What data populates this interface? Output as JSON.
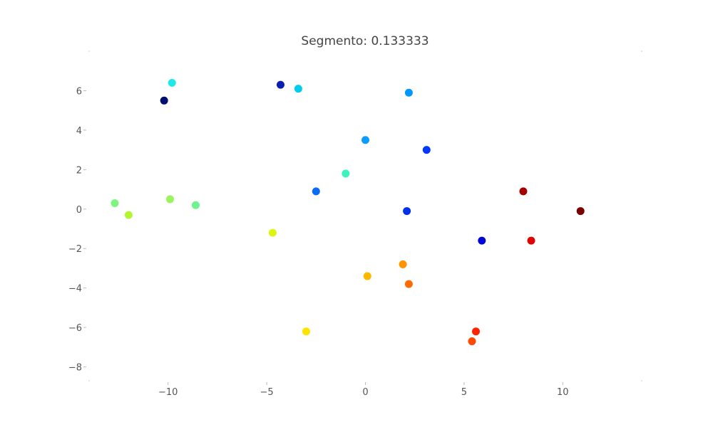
{
  "chart_data": {
    "type": "scatter",
    "title": "Segmento: 0.133333",
    "xlabel": "",
    "ylabel": "",
    "xlim": [
      -14,
      14
    ],
    "ylim": [
      -8.7,
      8.0
    ],
    "grid": false,
    "x_ticks": [
      {
        "value": -10,
        "label": "−10"
      },
      {
        "value": -5,
        "label": "−5"
      },
      {
        "value": 0,
        "label": "0"
      },
      {
        "value": 5,
        "label": "5"
      },
      {
        "value": 10,
        "label": "10"
      }
    ],
    "y_ticks": [
      {
        "value": 6,
        "label": "6"
      },
      {
        "value": 4,
        "label": "4"
      },
      {
        "value": 2,
        "label": "2"
      },
      {
        "value": 0,
        "label": "0"
      },
      {
        "value": -2,
        "label": "−2"
      },
      {
        "value": -4,
        "label": "−4"
      },
      {
        "value": -6,
        "label": "−6"
      },
      {
        "value": -8,
        "label": "−8"
      }
    ],
    "points": [
      {
        "x": -9.8,
        "y": 6.4,
        "color": "#1de9e6"
      },
      {
        "x": -10.2,
        "y": 5.5,
        "color": "#000f6e"
      },
      {
        "x": -4.3,
        "y": 6.3,
        "color": "#0a1eb0"
      },
      {
        "x": -3.4,
        "y": 6.1,
        "color": "#00ccf0"
      },
      {
        "x": 2.2,
        "y": 5.9,
        "color": "#0098ff"
      },
      {
        "x": 0.0,
        "y": 3.5,
        "color": "#0a9cff"
      },
      {
        "x": 3.1,
        "y": 3.0,
        "color": "#0038ff"
      },
      {
        "x": -1.0,
        "y": 1.8,
        "color": "#3ef2c0"
      },
      {
        "x": -2.5,
        "y": 0.9,
        "color": "#0a6cf5"
      },
      {
        "x": -12.7,
        "y": 0.3,
        "color": "#7ef57e"
      },
      {
        "x": -12.0,
        "y": -0.3,
        "color": "#b4f532"
      },
      {
        "x": -9.9,
        "y": 0.5,
        "color": "#98f55e"
      },
      {
        "x": -8.6,
        "y": 0.2,
        "color": "#6ef28e"
      },
      {
        "x": -4.7,
        "y": -1.2,
        "color": "#dcf512"
      },
      {
        "x": 2.1,
        "y": -0.1,
        "color": "#0030e8"
      },
      {
        "x": 5.9,
        "y": -1.6,
        "color": "#0006d8"
      },
      {
        "x": 8.0,
        "y": 0.9,
        "color": "#a50000"
      },
      {
        "x": 10.9,
        "y": -0.1,
        "color": "#7a0000"
      },
      {
        "x": 8.4,
        "y": -1.6,
        "color": "#e00000"
      },
      {
        "x": 0.1,
        "y": -3.4,
        "color": "#ffb800"
      },
      {
        "x": 1.9,
        "y": -2.8,
        "color": "#ff9400"
      },
      {
        "x": 2.2,
        "y": -3.8,
        "color": "#ff6a00"
      },
      {
        "x": -3.0,
        "y": -6.2,
        "color": "#ffe400"
      },
      {
        "x": 5.6,
        "y": -6.2,
        "color": "#ff2400"
      },
      {
        "x": 5.4,
        "y": -6.7,
        "color": "#ff4800"
      }
    ]
  }
}
